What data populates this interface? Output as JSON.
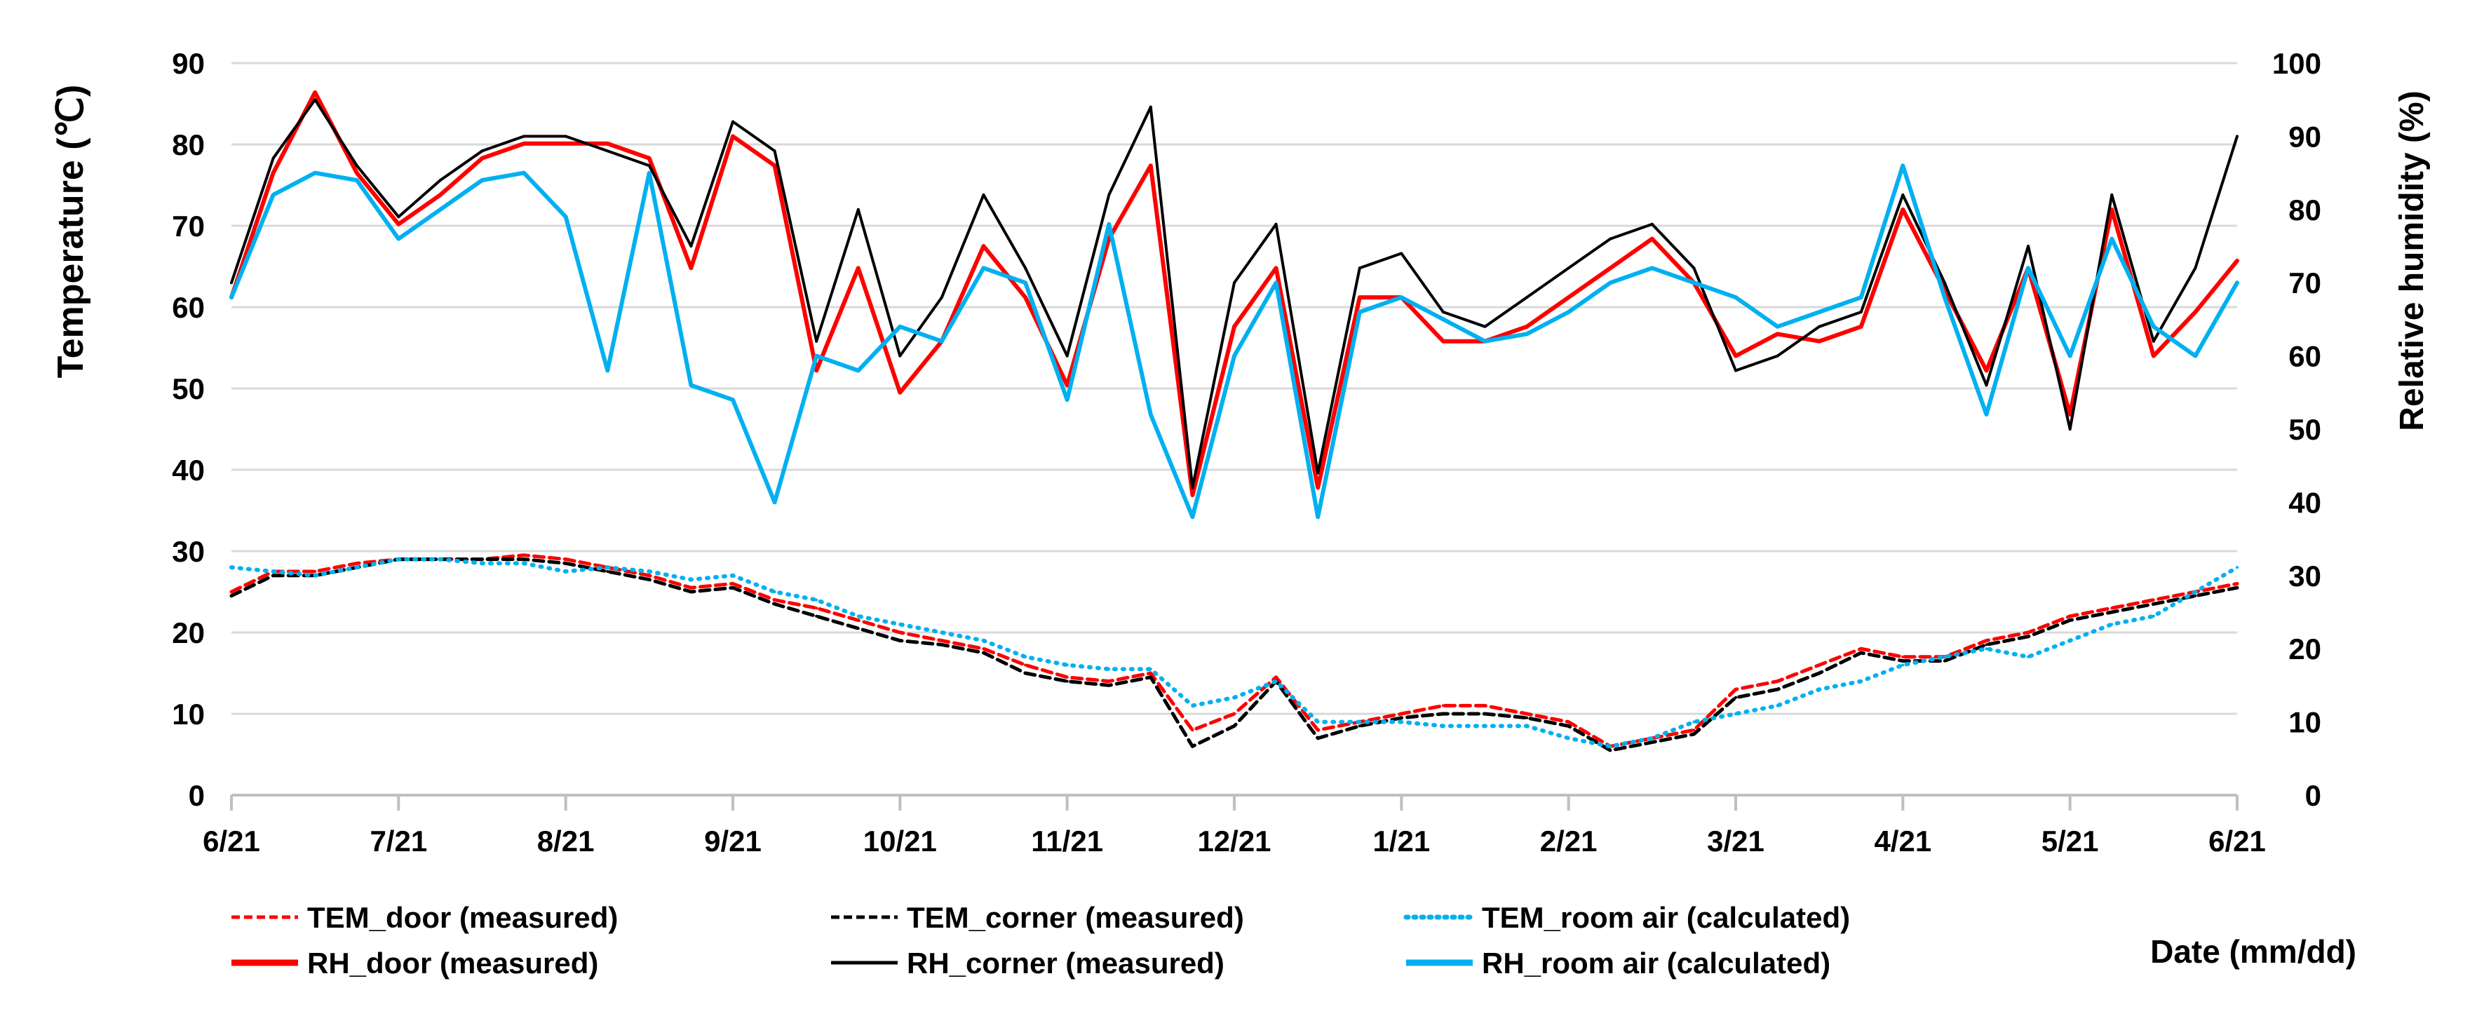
{
  "chart_data": {
    "type": "line",
    "xlabel": "Date (mm/dd)",
    "ylabel_left": "Temperature (℃)",
    "ylabel_right": "Relative humidity (%)",
    "x_ticks": [
      "6/21",
      "7/21",
      "8/21",
      "9/21",
      "10/21",
      "11/21",
      "12/21",
      "1/21",
      "2/21",
      "3/21",
      "4/21",
      "5/21",
      "6/21"
    ],
    "y_left_ticks": [
      "0",
      "10",
      "20",
      "30",
      "40",
      "50",
      "60",
      "70",
      "80",
      "90"
    ],
    "y_right_ticks": [
      "0",
      "10",
      "20",
      "30",
      "40",
      "50",
      "60",
      "70",
      "80",
      "90",
      "100"
    ],
    "ylim_left": [
      0,
      90
    ],
    "ylim_right": [
      0,
      100
    ],
    "grid": true,
    "legend_position": "bottom",
    "colors": {
      "door": "#ff0000",
      "corner": "#000000",
      "room": "#00b0f0",
      "grid": "#d9d9d9",
      "axis": "#bfbfbf"
    },
    "series": [
      {
        "name": "TEM_door (measured)",
        "axis": "left",
        "style": "dashed",
        "color": "#ff0000",
        "x": [
          0,
          0.25,
          0.5,
          0.75,
          1,
          1.25,
          1.5,
          1.75,
          2,
          2.25,
          2.5,
          2.75,
          3,
          3.25,
          3.5,
          3.75,
          4,
          4.25,
          4.5,
          4.75,
          5,
          5.25,
          5.5,
          5.75,
          6,
          6.25,
          6.5,
          6.75,
          7,
          7.25,
          7.5,
          7.75,
          8,
          8.25,
          8.5,
          8.75,
          9,
          9.25,
          9.5,
          9.75,
          10,
          10.25,
          10.5,
          10.75,
          11,
          11.25,
          11.5,
          11.75,
          12
        ],
        "values": [
          25,
          27.5,
          27.5,
          28.5,
          29,
          29,
          29,
          29.5,
          29,
          28,
          27,
          25.5,
          26,
          24,
          23,
          21.5,
          20,
          19,
          18,
          16,
          14.5,
          14,
          15,
          8,
          10,
          14.5,
          8,
          9,
          10,
          11,
          11,
          10,
          9,
          6,
          7,
          8,
          13,
          14,
          16,
          18,
          17,
          17,
          19,
          20,
          22,
          23,
          24,
          25,
          26
        ]
      },
      {
        "name": "TEM_corner (measured)",
        "axis": "left",
        "style": "dashed",
        "color": "#000000",
        "x": [
          0,
          0.25,
          0.5,
          0.75,
          1,
          1.25,
          1.5,
          1.75,
          2,
          2.25,
          2.5,
          2.75,
          3,
          3.25,
          3.5,
          3.75,
          4,
          4.25,
          4.5,
          4.75,
          5,
          5.25,
          5.5,
          5.75,
          6,
          6.25,
          6.5,
          6.75,
          7,
          7.25,
          7.5,
          7.75,
          8,
          8.25,
          8.5,
          8.75,
          9,
          9.25,
          9.5,
          9.75,
          10,
          10.25,
          10.5,
          10.75,
          11,
          11.25,
          11.5,
          11.75,
          12
        ],
        "values": [
          24.5,
          27,
          27,
          28,
          29,
          29,
          29,
          29,
          28.5,
          27.5,
          26.5,
          25,
          25.5,
          23.5,
          22,
          20.5,
          19,
          18.5,
          17.5,
          15,
          14,
          13.5,
          14.5,
          6,
          8.5,
          14,
          7,
          8.5,
          9.5,
          10,
          10,
          9.5,
          8.5,
          5.5,
          6.5,
          7.5,
          12,
          13,
          15,
          17.5,
          16.5,
          16.5,
          18.5,
          19.5,
          21.5,
          22.5,
          23.5,
          24.5,
          25.5
        ]
      },
      {
        "name": "TEM_room air (calculated)",
        "axis": "left",
        "style": "dotted",
        "color": "#00b0f0",
        "x": [
          0,
          0.25,
          0.5,
          0.75,
          1,
          1.25,
          1.5,
          1.75,
          2,
          2.25,
          2.5,
          2.75,
          3,
          3.25,
          3.5,
          3.75,
          4,
          4.25,
          4.5,
          4.75,
          5,
          5.25,
          5.5,
          5.75,
          6,
          6.25,
          6.5,
          6.75,
          7,
          7.25,
          7.5,
          7.75,
          8,
          8.25,
          8.5,
          8.75,
          9,
          9.25,
          9.5,
          9.75,
          10,
          10.25,
          10.5,
          10.75,
          11,
          11.25,
          11.5,
          11.75,
          12
        ],
        "values": [
          28,
          27.5,
          27,
          28,
          29,
          29,
          28.5,
          28.5,
          27.5,
          28,
          27.5,
          26.5,
          27,
          25,
          24,
          22,
          21,
          20,
          19,
          17,
          16,
          15.5,
          15.5,
          11,
          12,
          14,
          9,
          9,
          9,
          8.5,
          8.5,
          8.5,
          7,
          6,
          7,
          9,
          10,
          11,
          13,
          14,
          16,
          17,
          18,
          17,
          19,
          21,
          22,
          25,
          28
        ]
      },
      {
        "name": "RH_door (measured)",
        "axis": "right",
        "style": "solid",
        "color": "#ff0000",
        "x": [
          0,
          0.25,
          0.5,
          0.75,
          1,
          1.25,
          1.5,
          1.75,
          2,
          2.25,
          2.5,
          2.75,
          3,
          3.25,
          3.5,
          3.75,
          4,
          4.25,
          4.5,
          4.75,
          5,
          5.25,
          5.5,
          5.75,
          6,
          6.25,
          6.5,
          6.75,
          7,
          7.25,
          7.5,
          7.75,
          8,
          8.25,
          8.5,
          8.75,
          9,
          9.25,
          9.5,
          9.75,
          10,
          10.25,
          10.5,
          10.75,
          11,
          11.25,
          11.5,
          11.75,
          12
        ],
        "values": [
          68,
          85,
          96,
          85,
          78,
          82,
          87,
          89,
          89,
          89,
          87,
          72,
          90,
          86,
          58,
          72,
          55,
          62,
          75,
          68,
          56,
          76,
          86,
          41,
          64,
          72,
          42,
          68,
          68,
          62,
          62,
          64,
          68,
          72,
          76,
          70,
          60,
          63,
          62,
          64,
          80,
          69,
          58,
          72,
          52,
          80,
          60,
          66,
          73
        ]
      },
      {
        "name": "RH_corner (measured)",
        "axis": "right",
        "style": "solid",
        "color": "#000000",
        "x": [
          0,
          0.25,
          0.5,
          0.75,
          1,
          1.25,
          1.5,
          1.75,
          2,
          2.25,
          2.5,
          2.75,
          3,
          3.25,
          3.5,
          3.75,
          4,
          4.25,
          4.5,
          4.75,
          5,
          5.25,
          5.5,
          5.75,
          6,
          6.25,
          6.5,
          6.75,
          7,
          7.25,
          7.5,
          7.75,
          8,
          8.25,
          8.5,
          8.75,
          9,
          9.25,
          9.5,
          9.75,
          10,
          10.25,
          10.5,
          10.75,
          11,
          11.25,
          11.5,
          11.75,
          12
        ],
        "values": [
          70,
          87,
          95,
          86,
          79,
          84,
          88,
          90,
          90,
          88,
          86,
          75,
          92,
          88,
          62,
          80,
          60,
          68,
          82,
          72,
          60,
          82,
          94,
          42,
          70,
          78,
          44,
          72,
          74,
          66,
          64,
          68,
          72,
          76,
          78,
          72,
          58,
          60,
          64,
          66,
          82,
          70,
          56,
          75,
          50,
          82,
          62,
          72,
          90
        ]
      },
      {
        "name": "RH_room air (calculated)",
        "axis": "right",
        "style": "solid",
        "color": "#00b0f0",
        "x": [
          0,
          0.25,
          0.5,
          0.75,
          1,
          1.25,
          1.5,
          1.75,
          2,
          2.25,
          2.5,
          2.75,
          3,
          3.25,
          3.5,
          3.75,
          4,
          4.25,
          4.5,
          4.75,
          5,
          5.25,
          5.5,
          5.75,
          6,
          6.25,
          6.5,
          6.75,
          7,
          7.25,
          7.5,
          7.75,
          8,
          8.25,
          8.5,
          8.75,
          9,
          9.25,
          9.5,
          9.75,
          10,
          10.25,
          10.5,
          10.75,
          11,
          11.25,
          11.5,
          11.75,
          12
        ],
        "values": [
          68,
          82,
          85,
          84,
          76,
          80,
          84,
          85,
          79,
          58,
          85,
          56,
          54,
          40,
          60,
          58,
          64,
          62,
          72,
          70,
          54,
          78,
          52,
          38,
          60,
          70,
          38,
          66,
          68,
          65,
          62,
          63,
          66,
          70,
          72,
          70,
          68,
          64,
          66,
          68,
          86,
          68,
          52,
          72,
          60,
          76,
          64,
          60,
          70
        ]
      }
    ]
  }
}
